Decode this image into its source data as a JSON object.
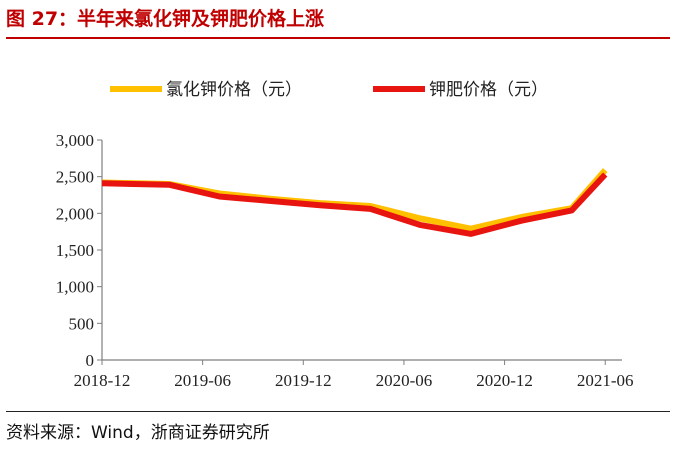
{
  "figure": {
    "title": "图 27：半年来氯化钾及钾肥价格上涨",
    "source": "资料来源：Wind，浙商证券研究所"
  },
  "colors": {
    "title": "#c00000",
    "series_kcl": "#ffc000",
    "series_potash": "#e8140f"
  },
  "chart_data": {
    "type": "line",
    "title": "",
    "xlabel": "",
    "ylabel": "",
    "ylim": [
      0,
      3000
    ],
    "yticks": [
      0,
      500,
      1000,
      1500,
      2000,
      2500,
      3000
    ],
    "ytick_labels": [
      "0",
      "500",
      "1,000",
      "1,500",
      "2,000",
      "2,500",
      "3,000"
    ],
    "xlim": [
      "2018-12",
      "2021-07"
    ],
    "xtick_labels": [
      "2018-12",
      "2019-06",
      "2019-12",
      "2020-06",
      "2020-12",
      "2021-06"
    ],
    "grid": false,
    "legend": "top",
    "series": [
      {
        "name": "氯化钾价格（元）",
        "color": "#ffc000",
        "points": [
          {
            "x": "2018-12",
            "y": 2420
          },
          {
            "x": "2019-04",
            "y": 2400
          },
          {
            "x": "2019-07",
            "y": 2270
          },
          {
            "x": "2019-10",
            "y": 2200
          },
          {
            "x": "2020-01",
            "y": 2140
          },
          {
            "x": "2020-04",
            "y": 2100
          },
          {
            "x": "2020-07",
            "y": 1930
          },
          {
            "x": "2020-10",
            "y": 1790
          },
          {
            "x": "2021-01",
            "y": 1950
          },
          {
            "x": "2021-04",
            "y": 2070
          },
          {
            "x": "2021-06",
            "y": 2590
          }
        ]
      },
      {
        "name": "钾肥价格（元）",
        "color": "#e8140f",
        "points": [
          {
            "x": "2018-12",
            "y": 2410
          },
          {
            "x": "2019-04",
            "y": 2390
          },
          {
            "x": "2019-07",
            "y": 2230
          },
          {
            "x": "2019-10",
            "y": 2170
          },
          {
            "x": "2020-01",
            "y": 2110
          },
          {
            "x": "2020-04",
            "y": 2060
          },
          {
            "x": "2020-07",
            "y": 1840
          },
          {
            "x": "2020-10",
            "y": 1720
          },
          {
            "x": "2021-01",
            "y": 1900
          },
          {
            "x": "2021-04",
            "y": 2040
          },
          {
            "x": "2021-06",
            "y": 2530
          }
        ]
      }
    ]
  }
}
